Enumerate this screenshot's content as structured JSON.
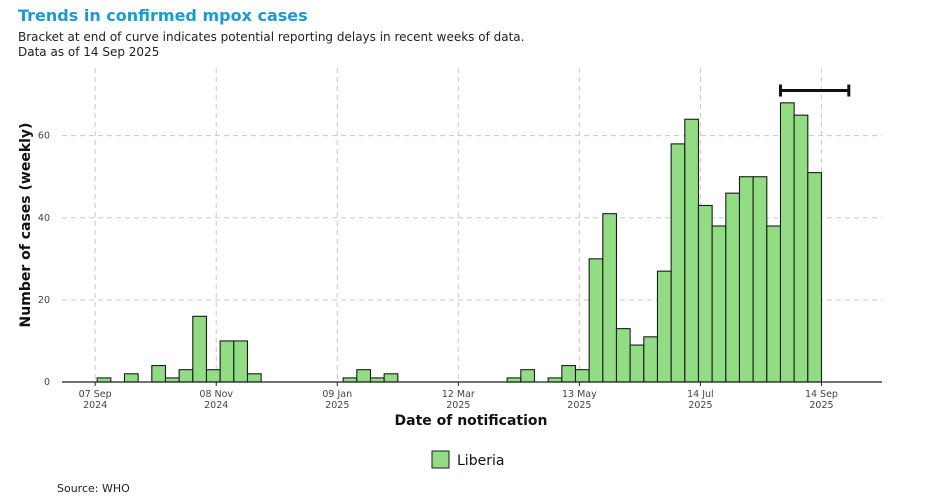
{
  "title": "Trends in confirmed mpox cases",
  "subtitle_line1": "Bracket at end of curve indicates potential reporting delays in recent weeks of data.",
  "subtitle_line2": "Data as of 14 Sep 2025",
  "source": "Source: WHO",
  "chart_data": {
    "type": "bar",
    "xlabel": "Date of notification",
    "ylabel": "Number of cases (weekly)",
    "ylim": [
      0,
      76
    ],
    "xlim": [
      "2024-08-21",
      "2025-10-15"
    ],
    "grid": true,
    "legend_position": "bottom",
    "bar_color": "#92dd84",
    "bar_outline": "#1a1a1a",
    "y_ticks": [
      0,
      20,
      40,
      60
    ],
    "x_ticks": [
      {
        "date": "2024-09-07",
        "label1": "07 Sep",
        "label2": "2024"
      },
      {
        "date": "2024-11-08",
        "label1": "08 Nov",
        "label2": "2024"
      },
      {
        "date": "2025-01-09",
        "label1": "09 Jan",
        "label2": "2025"
      },
      {
        "date": "2025-03-12",
        "label1": "12 Mar",
        "label2": "2025"
      },
      {
        "date": "2025-05-13",
        "label1": "13 May",
        "label2": "2025"
      },
      {
        "date": "2025-07-14",
        "label1": "14 Jul",
        "label2": "2025"
      },
      {
        "date": "2025-09-14",
        "label1": "14 Sep",
        "label2": "2025"
      }
    ],
    "series": [
      {
        "name": "Liberia",
        "week_start": [
          "2024-09-08",
          "2024-09-15",
          "2024-09-22",
          "2024-09-29",
          "2024-10-06",
          "2024-10-13",
          "2024-10-20",
          "2024-10-27",
          "2024-11-03",
          "2024-11-10",
          "2024-11-17",
          "2024-11-24",
          "2024-12-01",
          "2024-12-08",
          "2024-12-15",
          "2024-12-22",
          "2024-12-29",
          "2025-01-05",
          "2025-01-12",
          "2025-01-19",
          "2025-01-26",
          "2025-02-02",
          "2025-02-09",
          "2025-02-16",
          "2025-02-23",
          "2025-03-02",
          "2025-03-09",
          "2025-03-16",
          "2025-03-23",
          "2025-03-30",
          "2025-04-06",
          "2025-04-13",
          "2025-04-20",
          "2025-04-27",
          "2025-05-04",
          "2025-05-11",
          "2025-05-18",
          "2025-05-25",
          "2025-06-01",
          "2025-06-08",
          "2025-06-15",
          "2025-06-22",
          "2025-06-29",
          "2025-07-06",
          "2025-07-13",
          "2025-07-20",
          "2025-07-27",
          "2025-08-03",
          "2025-08-10",
          "2025-08-17",
          "2025-08-24",
          "2025-08-31",
          "2025-09-07"
        ],
        "values": [
          1,
          0,
          2,
          0,
          4,
          1,
          3,
          16,
          3,
          10,
          10,
          2,
          0,
          0,
          0,
          0,
          0,
          0,
          1,
          3,
          1,
          2,
          0,
          0,
          0,
          0,
          0,
          0,
          0,
          0,
          1,
          3,
          0,
          1,
          4,
          3,
          30,
          41,
          13,
          9,
          11,
          27,
          58,
          64,
          43,
          38,
          46,
          50,
          50,
          38,
          68,
          65,
          51
        ]
      }
    ],
    "reporting_delay_bracket": {
      "start": "2025-08-24",
      "end": "2025-09-28",
      "y": 71
    }
  }
}
